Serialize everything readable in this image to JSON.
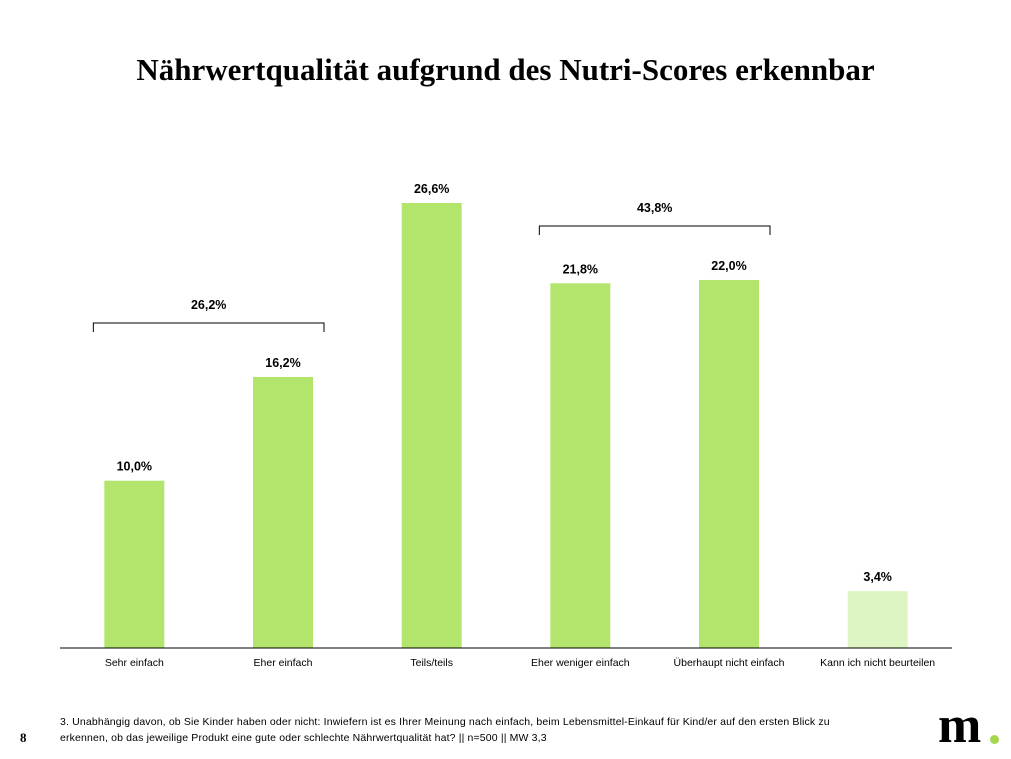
{
  "title": "Nährwertqualität aufgrund des Nutri-Scores erkennbar",
  "chart_data": {
    "type": "bar",
    "categories": [
      "Sehr einfach",
      "Eher einfach",
      "Teils/teils",
      "Eher weniger einfach",
      "Überhaupt nicht einfach",
      "Kann ich nicht beurteilen"
    ],
    "values": [
      10.0,
      16.2,
      26.6,
      21.8,
      22.0,
      3.4
    ],
    "value_labels": [
      "10,0%",
      "16,2%",
      "26,6%",
      "21,8%",
      "22,0%",
      "3,4%"
    ],
    "bar_colors": [
      "#b3e56c",
      "#b3e56c",
      "#b3e56c",
      "#b3e56c",
      "#b3e56c",
      "#ddf5c2"
    ],
    "ylim": [
      0,
      26.6
    ],
    "grid": false,
    "groups": [
      {
        "label": "26,2%",
        "from": 0,
        "to": 1
      },
      {
        "label": "43,8%",
        "from": 3,
        "to": 4
      }
    ]
  },
  "footnote": "3. Unabhängig davon, ob Sie Kinder haben oder nicht: Inwiefern ist es Ihrer Meinung nach einfach, beim Lebensmittel-Einkauf für Kind/er auf den ersten Blick zu erkennen, ob das jeweilige Produkt eine gute oder schlechte Nährwertqualität hat? || n=500 || MW 3,3",
  "page_number": "8",
  "logo": {
    "text": "m",
    "dot_color": "#a6d64f"
  }
}
